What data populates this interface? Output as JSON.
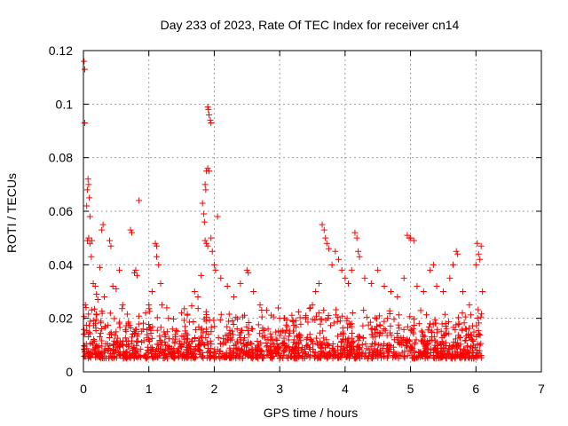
{
  "chart_data": {
    "type": "scatter",
    "title": "Day 233 of 2023, Rate Of TEC Index for receiver cn14",
    "xlabel": "GPS time / hours",
    "ylabel": "ROTI / TECUs",
    "xlim": [
      0,
      7
    ],
    "ylim": [
      0,
      0.12
    ],
    "x_ticks": [
      0,
      1,
      2,
      3,
      4,
      5,
      6,
      7
    ],
    "x_tick_labels": [
      "0",
      "1",
      "2",
      "3",
      "4",
      "5",
      "6",
      "7"
    ],
    "y_ticks": [
      0,
      0.02,
      0.04,
      0.06,
      0.08,
      0.1,
      0.12
    ],
    "y_tick_labels": [
      "0",
      "0.02",
      "0.04",
      "0.06",
      "0.08",
      "0.1",
      "0.12"
    ],
    "grid": true,
    "marker": "+",
    "color": "#ff0000",
    "series": [
      {
        "name": "ROTI",
        "points": [
          [
            0.01,
            0.116
          ],
          [
            0.02,
            0.113
          ],
          [
            0.02,
            0.093
          ],
          [
            0.03,
            0.025
          ],
          [
            0.04,
            0.024
          ],
          [
            0.05,
            0.062
          ],
          [
            0.06,
            0.068
          ],
          [
            0.07,
            0.072
          ],
          [
            0.08,
            0.07
          ],
          [
            0.09,
            0.065
          ],
          [
            0.1,
            0.058
          ],
          [
            0.06,
            0.049
          ],
          [
            0.08,
            0.05
          ],
          [
            0.1,
            0.048
          ],
          [
            0.12,
            0.043
          ],
          [
            0.13,
            0.049
          ],
          [
            0.15,
            0.033
          ],
          [
            0.18,
            0.032
          ],
          [
            0.2,
            0.029
          ],
          [
            0.22,
            0.027
          ],
          [
            0.25,
            0.039
          ],
          [
            0.28,
            0.053
          ],
          [
            0.3,
            0.055
          ],
          [
            0.32,
            0.028
          ],
          [
            0.4,
            0.049
          ],
          [
            0.42,
            0.047
          ],
          [
            0.45,
            0.032
          ],
          [
            0.5,
            0.031
          ],
          [
            0.55,
            0.038
          ],
          [
            0.6,
            0.025
          ],
          [
            0.72,
            0.053
          ],
          [
            0.74,
            0.052
          ],
          [
            0.78,
            0.037
          ],
          [
            0.8,
            0.038
          ],
          [
            0.82,
            0.036
          ],
          [
            0.85,
            0.064
          ],
          [
            0.95,
            0.022
          ],
          [
            1.0,
            0.025
          ],
          [
            1.05,
            0.03
          ],
          [
            1.1,
            0.048
          ],
          [
            1.12,
            0.047
          ],
          [
            1.12,
            0.043
          ],
          [
            1.15,
            0.04
          ],
          [
            1.18,
            0.033
          ],
          [
            1.2,
            0.025
          ],
          [
            1.3,
            0.02
          ],
          [
            1.5,
            0.022
          ],
          [
            1.7,
            0.03
          ],
          [
            1.75,
            0.028
          ],
          [
            1.8,
            0.036
          ],
          [
            1.82,
            0.063
          ],
          [
            1.84,
            0.059
          ],
          [
            1.85,
            0.056
          ],
          [
            1.86,
            0.07
          ],
          [
            1.87,
            0.068
          ],
          [
            1.88,
            0.075
          ],
          [
            1.9,
            0.076
          ],
          [
            1.92,
            0.075
          ],
          [
            1.9,
            0.099
          ],
          [
            1.91,
            0.098
          ],
          [
            1.92,
            0.096
          ],
          [
            1.94,
            0.094
          ],
          [
            1.95,
            0.093
          ],
          [
            1.86,
            0.049
          ],
          [
            1.88,
            0.048
          ],
          [
            1.9,
            0.047
          ],
          [
            1.95,
            0.05
          ],
          [
            1.97,
            0.045
          ],
          [
            2.0,
            0.04
          ],
          [
            2.02,
            0.038
          ],
          [
            2.05,
            0.058
          ],
          [
            2.1,
            0.035
          ],
          [
            2.2,
            0.032
          ],
          [
            2.3,
            0.028
          ],
          [
            2.4,
            0.033
          ],
          [
            2.5,
            0.038
          ],
          [
            2.52,
            0.037
          ],
          [
            2.6,
            0.03
          ],
          [
            2.7,
            0.025
          ],
          [
            2.8,
            0.023
          ],
          [
            3.0,
            0.02
          ],
          [
            3.2,
            0.019
          ],
          [
            3.4,
            0.021
          ],
          [
            3.5,
            0.025
          ],
          [
            3.55,
            0.03
          ],
          [
            3.6,
            0.033
          ],
          [
            3.65,
            0.055
          ],
          [
            3.68,
            0.053
          ],
          [
            3.7,
            0.05
          ],
          [
            3.72,
            0.048
          ],
          [
            3.75,
            0.046
          ],
          [
            3.8,
            0.04
          ],
          [
            3.85,
            0.045
          ],
          [
            3.9,
            0.042
          ],
          [
            3.95,
            0.038
          ],
          [
            4.0,
            0.035
          ],
          [
            4.05,
            0.033
          ],
          [
            4.1,
            0.038
          ],
          [
            4.15,
            0.052
          ],
          [
            4.18,
            0.05
          ],
          [
            4.2,
            0.045
          ],
          [
            4.22,
            0.043
          ],
          [
            4.3,
            0.035
          ],
          [
            4.4,
            0.033
          ],
          [
            4.5,
            0.038
          ],
          [
            4.6,
            0.032
          ],
          [
            4.7,
            0.03
          ],
          [
            4.8,
            0.028
          ],
          [
            4.9,
            0.035
          ],
          [
            4.95,
            0.051
          ],
          [
            4.98,
            0.05
          ],
          [
            5.0,
            0.05
          ],
          [
            5.05,
            0.049
          ],
          [
            5.1,
            0.032
          ],
          [
            5.2,
            0.03
          ],
          [
            5.3,
            0.038
          ],
          [
            5.35,
            0.04
          ],
          [
            5.4,
            0.032
          ],
          [
            5.5,
            0.03
          ],
          [
            5.6,
            0.035
          ],
          [
            5.65,
            0.04
          ],
          [
            5.7,
            0.045
          ],
          [
            5.72,
            0.044
          ],
          [
            5.8,
            0.03
          ],
          [
            5.9,
            0.025
          ],
          [
            6.0,
            0.04
          ],
          [
            6.02,
            0.048
          ],
          [
            6.04,
            0.044
          ],
          [
            6.06,
            0.042
          ],
          [
            6.08,
            0.047
          ],
          [
            6.1,
            0.03
          ]
        ]
      }
    ],
    "dense_band": {
      "description_values": "Dense cluster of ROTI values between x=0 and x=6.1",
      "x_range": [
        0,
        6.1
      ],
      "y_low": 0.005,
      "y_high": 0.022
    }
  }
}
